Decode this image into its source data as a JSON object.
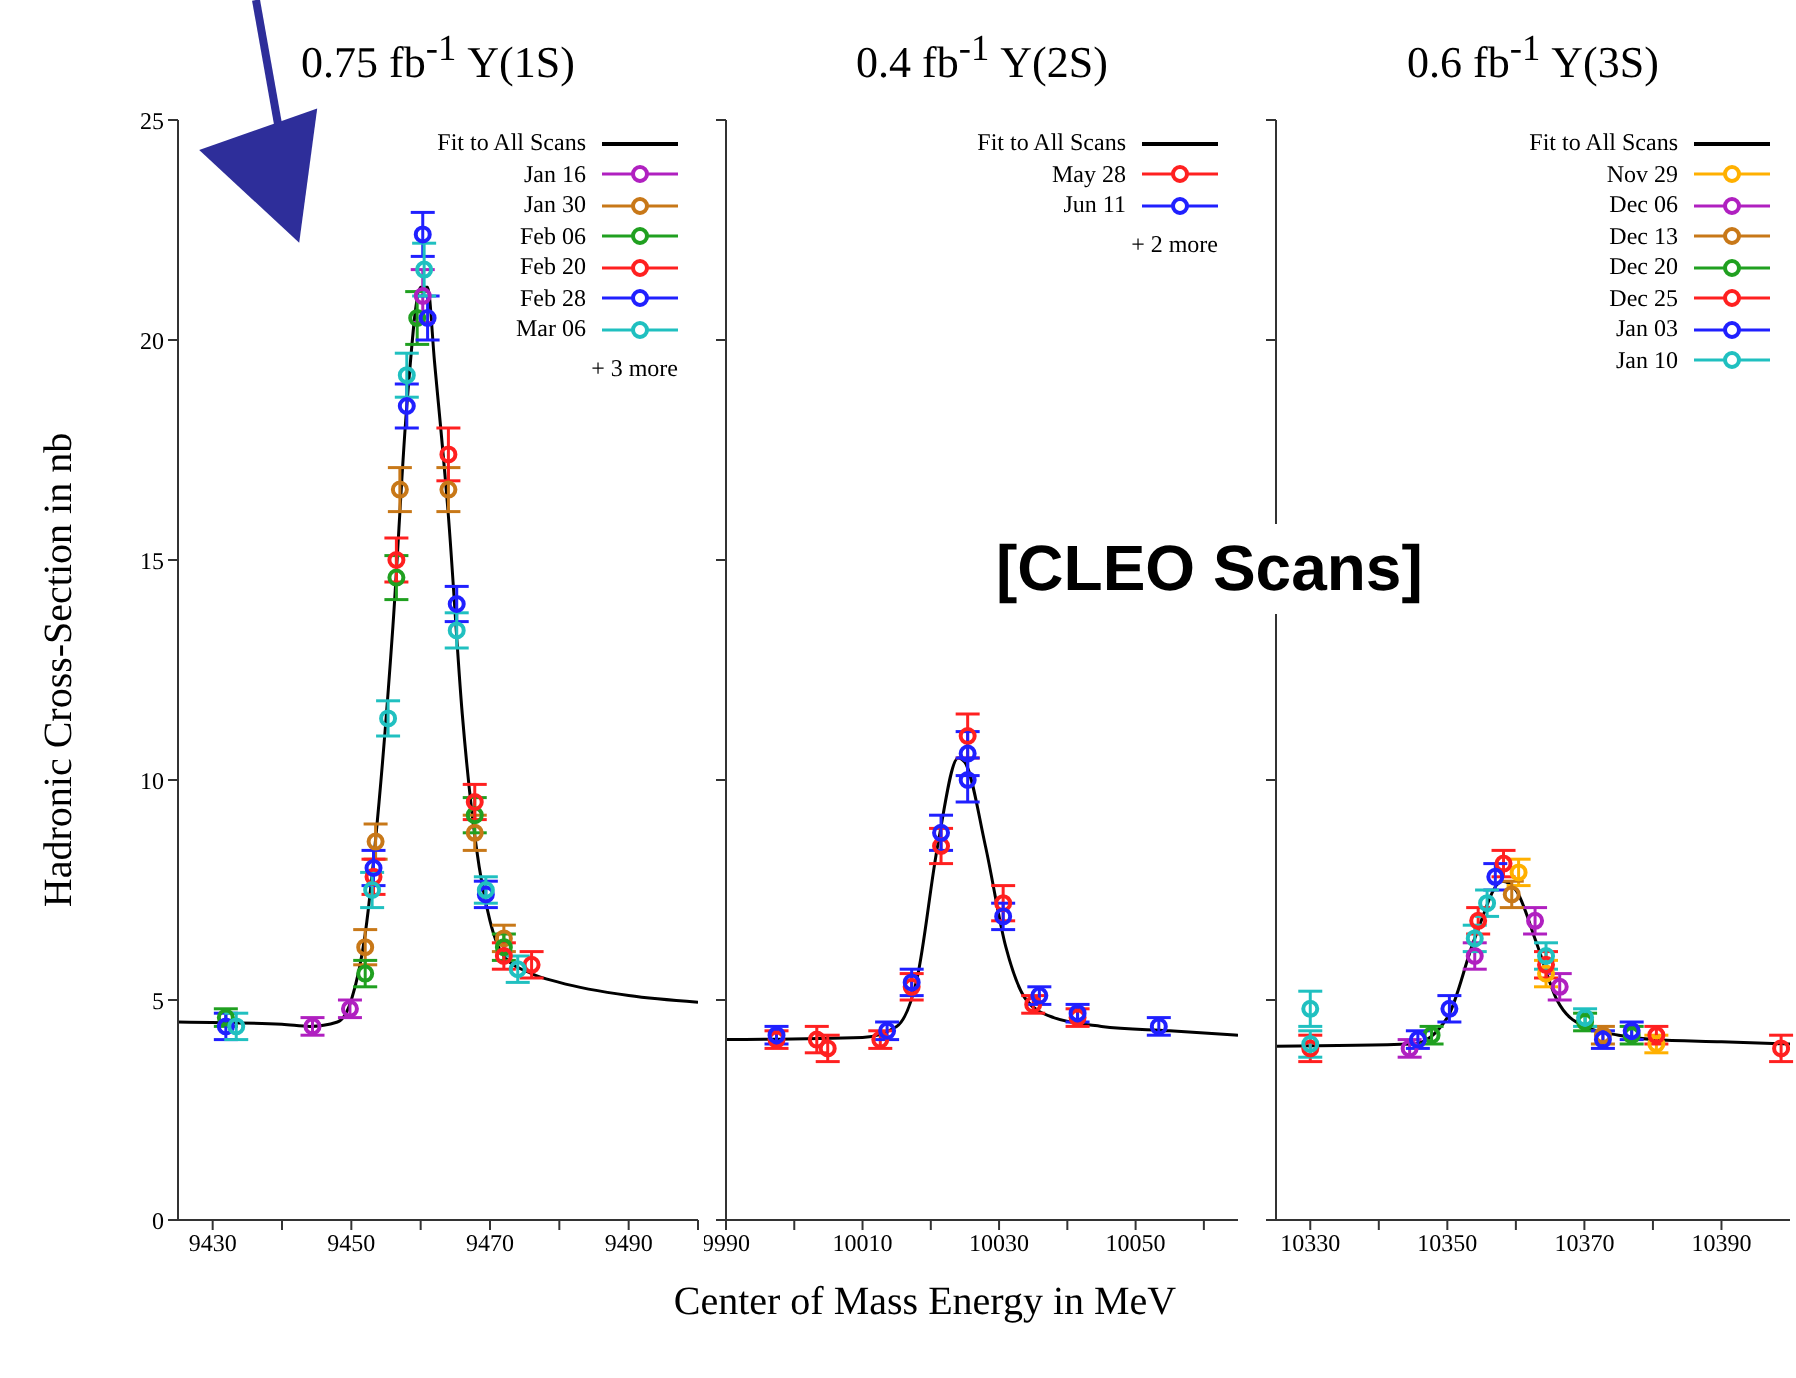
{
  "chart_data": [
    {
      "type": "scatter",
      "title": "0.75 fb$^{-1}$ Υ(1S)",
      "ylabel": "Hadronic Cross-Section in nb",
      "xlim": [
        9425,
        9500
      ],
      "xticks": [
        9430,
        {
          "value": 9440,
          "label": null
        },
        9450,
        {
          "value": 9460,
          "label": null
        },
        9470,
        {
          "value": 9480,
          "label": null
        },
        9490,
        {
          "value": 9500,
          "label": null
        }
      ],
      "ylim": [
        0,
        25
      ],
      "yticks": [
        0,
        5,
        10,
        15,
        20,
        25
      ],
      "legend": "top right",
      "marker": "circle",
      "annotations": [
        "+ 3 more"
      ],
      "series": [
        {
          "name": "Fit to All Scans",
          "type": "line",
          "marker": "none",
          "color": "#000000",
          "x": [
            9425,
            9440,
            9444,
            9448,
            9450,
            9452,
            9454,
            9456,
            9458,
            9460,
            9461,
            9462,
            9464,
            9466,
            9468,
            9470,
            9472,
            9476,
            9480,
            9490,
            9500
          ],
          "values": [
            4.5,
            4.45,
            4.4,
            4.5,
            5.0,
            6.5,
            9.5,
            13.5,
            18.5,
            21.2,
            21.2,
            19.5,
            16,
            11.5,
            8.5,
            6.8,
            6.0,
            5.6,
            5.4,
            5.1,
            4.95
          ]
        },
        {
          "name": "Jan 16",
          "color": "#b020c0",
          "x": [
            9444.4,
            9449.8,
            9460.3
          ],
          "values": [
            4.4,
            4.8,
            21.0
          ],
          "errors": [
            0.2,
            0.2,
            0.6
          ]
        },
        {
          "name": "Jan 30",
          "color": "#c87818",
          "x": [
            9452,
            9453.5,
            9457,
            9464,
            9467.8,
            9472
          ],
          "values": [
            6.2,
            8.6,
            16.6,
            16.6,
            8.8,
            6.4
          ],
          "errors": [
            0.4,
            0.4,
            0.5,
            0.5,
            0.4,
            0.3
          ]
        },
        {
          "name": "Feb 06",
          "color": "#20a020",
          "x": [
            9431.9,
            9452,
            9456.5,
            9459.5,
            9467.8,
            9472
          ],
          "values": [
            4.6,
            5.6,
            14.6,
            20.5,
            9.2,
            6.2
          ],
          "errors": [
            0.2,
            0.3,
            0.5,
            0.6,
            0.4,
            0.3
          ]
        },
        {
          "name": "Feb 20",
          "color": "#ff2020",
          "x": [
            9453.2,
            9456.5,
            9464,
            9467.8,
            9472,
            9476
          ],
          "values": [
            7.8,
            15.0,
            17.4,
            9.5,
            6.0,
            5.8
          ],
          "errors": [
            0.4,
            0.5,
            0.6,
            0.4,
            0.3,
            0.3
          ]
        },
        {
          "name": "Feb 28",
          "color": "#2020ff",
          "x": [
            9431.9,
            9453.2,
            9458,
            9460.3,
            9461,
            9465.2,
            9469.4
          ],
          "values": [
            4.4,
            8.0,
            18.5,
            22.4,
            20.5,
            14.0,
            7.4
          ],
          "errors": [
            0.3,
            0.4,
            0.5,
            0.5,
            0.5,
            0.4,
            0.3
          ]
        },
        {
          "name": "Mar 06",
          "color": "#20c0c0",
          "x": [
            9433.4,
            9453,
            9455.3,
            9458,
            9460.5,
            9465.2,
            9469.4,
            9474
          ],
          "values": [
            4.4,
            7.5,
            11.4,
            19.2,
            21.6,
            13.4,
            7.5,
            5.7
          ],
          "errors": [
            0.3,
            0.4,
            0.4,
            0.5,
            0.6,
            0.4,
            0.3,
            0.3
          ]
        }
      ]
    },
    {
      "type": "scatter",
      "title": "0.4 fb$^{-1}$ Υ(2S)",
      "xlabel": "Center of Mass Energy in MeV",
      "xlim": [
        9990,
        10065
      ],
      "xticks": [
        9990,
        {
          "value": 10000,
          "label": null
        },
        10010,
        {
          "value": 10020,
          "label": null
        },
        10030,
        {
          "value": 10040,
          "label": null
        },
        10050,
        {
          "value": 10060,
          "label": null
        }
      ],
      "ylim": [
        0,
        25
      ],
      "yticks": [
        0,
        5,
        10,
        15,
        20,
        25
      ],
      "tick_labels": "x",
      "legend": "top right",
      "marker": "circle",
      "annotations": [
        "+ 2 more",
        "[CLEO Scans]"
      ],
      "series": [
        {
          "name": "Fit to All Scans",
          "type": "line",
          "marker": "none",
          "color": "#000000",
          "x": [
            9990,
            10010,
            10015,
            10018,
            10021,
            10024,
            10025,
            10028,
            10031,
            10034,
            10038,
            10045,
            10055,
            10065
          ],
          "values": [
            4.1,
            4.15,
            4.4,
            5.5,
            8.5,
            10.5,
            10.4,
            8.5,
            6.2,
            5.0,
            4.6,
            4.4,
            4.3,
            4.2
          ]
        },
        {
          "name": "May 28",
          "color": "#ff2020",
          "x": [
            9997.4,
            10003.3,
            10004.9,
            10012.6,
            10017.2,
            10021.5,
            10025.4,
            10030.6,
            10035.0,
            10041.5
          ],
          "values": [
            4.1,
            4.1,
            3.9,
            4.1,
            5.3,
            8.5,
            11.0,
            7.2,
            4.9,
            4.6
          ],
          "errors": [
            0.2,
            0.3,
            0.3,
            0.2,
            0.3,
            0.4,
            0.5,
            0.4,
            0.2,
            0.2
          ]
        },
        {
          "name": "Jun 11",
          "color": "#2020ff",
          "x": [
            9997.4,
            10013.6,
            10017.2,
            10021.5,
            10025.4,
            10025.4,
            10030.6,
            10035.9,
            10041.5,
            10053.4
          ],
          "values": [
            4.2,
            4.3,
            5.4,
            8.8,
            10.0,
            10.6,
            6.9,
            5.1,
            4.7,
            4.4
          ],
          "errors": [
            0.2,
            0.2,
            0.3,
            0.4,
            0.5,
            0.5,
            0.3,
            0.2,
            0.2,
            0.2
          ]
        }
      ]
    },
    {
      "type": "scatter",
      "title": "0.6 fb$^{-1}$ Υ(3S)",
      "xlim": [
        10325,
        10400
      ],
      "xticks": [
        10330,
        {
          "value": 10340,
          "label": null
        },
        10350,
        {
          "value": 10360,
          "label": null
        },
        10370,
        {
          "value": 10380,
          "label": null
        },
        10390
      ],
      "ylim": [
        0,
        25
      ],
      "yticks": [
        0,
        5,
        10,
        15,
        20,
        25
      ],
      "tick_labels": "x",
      "legend": "top right",
      "marker": "circle",
      "series": [
        {
          "name": "Fit to All Scans",
          "type": "line",
          "marker": "none",
          "color": "#000000",
          "x": [
            10325,
            10345,
            10350,
            10354,
            10358,
            10360,
            10363,
            10366,
            10370,
            10375,
            10380,
            10390,
            10400
          ],
          "values": [
            3.95,
            4.0,
            4.6,
            6.4,
            7.7,
            7.5,
            6.3,
            5.0,
            4.4,
            4.2,
            4.1,
            4.05,
            4.0
          ]
        },
        {
          "name": "Nov 29",
          "color": "#ffb000",
          "x": [
            10360.4,
            10364.4,
            10380.5
          ],
          "values": [
            7.9,
            5.6,
            4.0
          ],
          "errors": [
            0.3,
            0.3,
            0.2
          ]
        },
        {
          "name": "Dec 06",
          "color": "#b020c0",
          "x": [
            10344.5,
            10354,
            10362.8,
            10366.4
          ],
          "values": [
            3.9,
            6.0,
            6.8,
            5.3
          ],
          "errors": [
            0.2,
            0.3,
            0.3,
            0.3
          ]
        },
        {
          "name": "Dec 13",
          "color": "#c87818",
          "x": [
            10359.4,
            10372.7
          ],
          "values": [
            7.4,
            4.2
          ],
          "errors": [
            0.3,
            0.2
          ]
        },
        {
          "name": "Dec 20",
          "color": "#20a020",
          "x": [
            10347.7,
            10370.1,
            10376.9
          ],
          "values": [
            4.2,
            4.5,
            4.2
          ],
          "errors": [
            0.2,
            0.2,
            0.2
          ]
        },
        {
          "name": "Dec 25",
          "color": "#ff2020",
          "x": [
            10330,
            10354.5,
            10358.2,
            10364.4,
            10380.5,
            10398.7
          ],
          "values": [
            3.9,
            6.8,
            8.1,
            5.8,
            4.2,
            3.9
          ],
          "errors": [
            0.3,
            0.3,
            0.3,
            0.3,
            0.2,
            0.3
          ]
        },
        {
          "name": "Jan 03",
          "color": "#2020ff",
          "x": [
            10345.7,
            10350.3,
            10357.0,
            10372.7,
            10376.9
          ],
          "values": [
            4.1,
            4.8,
            7.8,
            4.1,
            4.3
          ],
          "errors": [
            0.2,
            0.3,
            0.3,
            0.2,
            0.2
          ]
        },
        {
          "name": "Jan 10",
          "color": "#20c0c0",
          "x": [
            10330,
            10330,
            10354,
            10355.8,
            10364.4,
            10370.1
          ],
          "values": [
            4.0,
            4.8,
            6.4,
            7.2,
            6.0,
            4.6
          ],
          "errors": [
            0.3,
            0.4,
            0.3,
            0.3,
            0.3,
            0.2
          ]
        }
      ]
    }
  ]
}
